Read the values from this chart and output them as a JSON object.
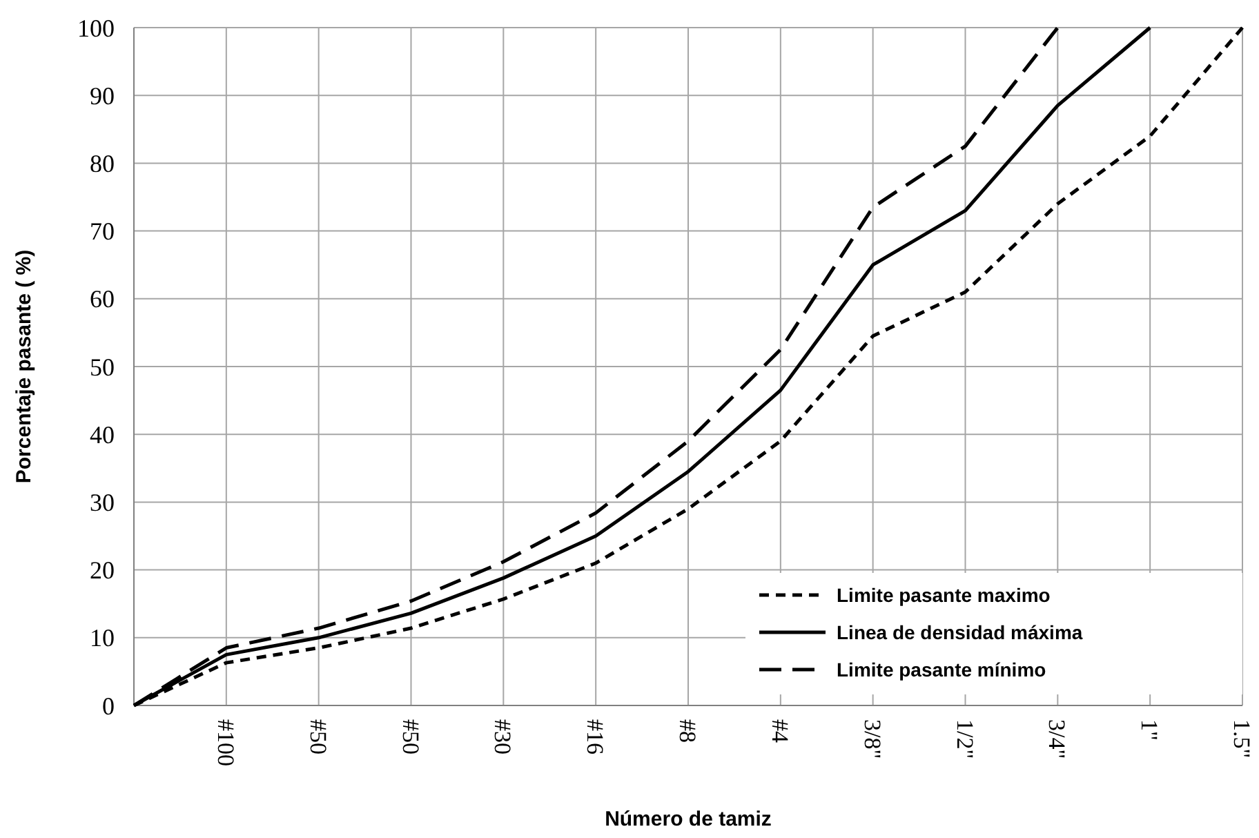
{
  "chart_data": {
    "type": "line",
    "xlabel": "Número de tamiz",
    "ylabel": "Porcentaje pasante  ( %)",
    "categories": [
      null,
      "#100",
      "#50",
      "#50",
      "#30",
      "#16",
      "#8",
      "#4",
      "3/8\"",
      "1/2\"",
      "3/4\"",
      "1\"",
      "1.5\""
    ],
    "ylim": [
      0,
      100
    ],
    "yticks": [
      0,
      10,
      20,
      30,
      40,
      50,
      60,
      70,
      80,
      90,
      100
    ],
    "grid": true,
    "legend": "bottom right",
    "series": [
      {
        "name": "Limite pasante maximo",
        "color": "#000000",
        "line_style": "dashed",
        "values": [
          0,
          6.3,
          8.5,
          11.4,
          15.7,
          21,
          29,
          39,
          54.5,
          61,
          74,
          84,
          100
        ]
      },
      {
        "name": "Linea de densidad máxima",
        "color": "#000000",
        "line_style": "solid",
        "values": [
          0,
          7.5,
          10,
          13.6,
          18.8,
          25,
          34.5,
          46.5,
          65,
          73,
          88.5,
          100,
          null
        ]
      },
      {
        "name": "Limite pasante mínimo",
        "color": "#000000",
        "line_style": "dashed",
        "values": [
          0,
          8.5,
          11.4,
          15.4,
          21.2,
          28.4,
          39,
          52.5,
          73.5,
          82.5,
          100,
          null,
          null
        ]
      }
    ]
  }
}
